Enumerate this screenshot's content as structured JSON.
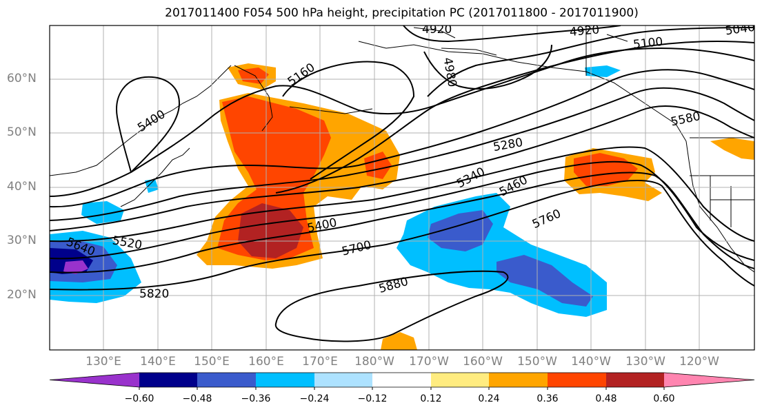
{
  "title": "2017011400 F054 500 hPa height, precipitation PC (2017011800 - 2017011900)",
  "lat_labels": [
    "60°N",
    "50°N",
    "40°N",
    "30°N",
    "20°N"
  ],
  "lon_labels": [
    "130°E",
    "140°E",
    "150°E",
    "160°E",
    "170°E",
    "180°W",
    "170°W",
    "160°W",
    "150°W",
    "140°W",
    "130°W",
    "120°W"
  ],
  "contour_labels": [
    "4920",
    "4980",
    "4920",
    "5040",
    "5100",
    "5160",
    "5400",
    "5580",
    "5280",
    "5340",
    "5460",
    "5400",
    "5520",
    "5640",
    "5700",
    "5760",
    "5880",
    "5820"
  ],
  "colorbar": {
    "tick_labels": [
      "−0.60",
      "−0.48",
      "−0.36",
      "−0.24",
      "−0.12",
      "0.12",
      "0.24",
      "0.36",
      "0.48",
      "0.60"
    ],
    "colors": [
      "#9932CC",
      "#00008B",
      "#3A5BCC",
      "#00BFFF",
      "#ADE2FF",
      "#FFFFFF",
      "#FFEC80",
      "#FFA500",
      "#FF4500",
      "#B22222",
      "#FF85B0"
    ]
  }
}
